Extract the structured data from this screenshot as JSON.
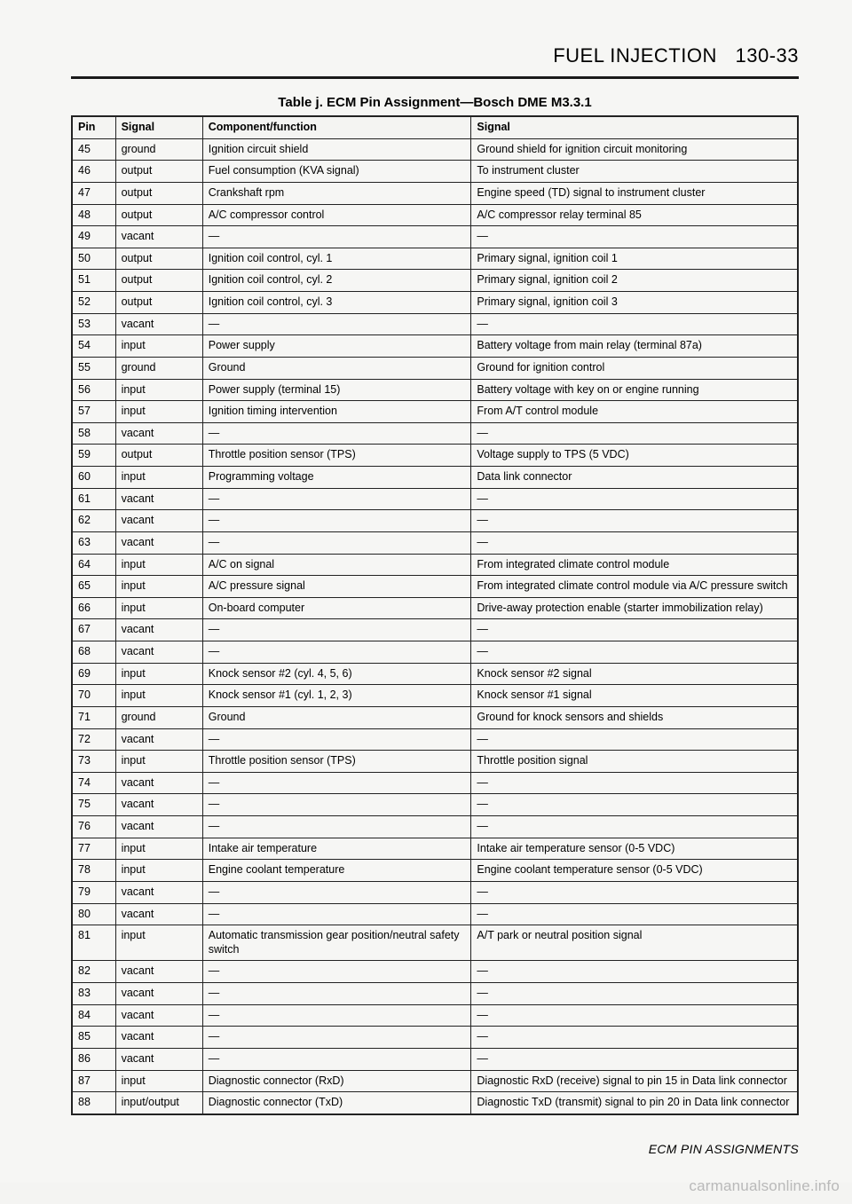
{
  "header": {
    "section": "FUEL INJECTION",
    "page": "130-33"
  },
  "caption": "Table j. ECM Pin Assignment—Bosch DME M3.3.1",
  "columns": [
    "Pin",
    "Signal",
    "Component/function",
    "Signal"
  ],
  "rows": [
    [
      "45",
      "ground",
      "Ignition circuit shield",
      "Ground shield for ignition circuit monitoring"
    ],
    [
      "46",
      "output",
      "Fuel consumption (KVA signal)",
      "To instrument cluster"
    ],
    [
      "47",
      "output",
      "Crankshaft rpm",
      "Engine speed (TD) signal to instrument cluster"
    ],
    [
      "48",
      "output",
      "A/C compressor control",
      "A/C compressor relay terminal 85"
    ],
    [
      "49",
      "vacant",
      "—",
      "—"
    ],
    [
      "50",
      "output",
      "Ignition coil control, cyl. 1",
      "Primary signal, ignition coil 1"
    ],
    [
      "51",
      "output",
      "Ignition coil control, cyl. 2",
      "Primary signal, ignition coil 2"
    ],
    [
      "52",
      "output",
      "Ignition coil control, cyl. 3",
      "Primary signal, ignition coil 3"
    ],
    [
      "53",
      "vacant",
      "—",
      "—"
    ],
    [
      "54",
      "input",
      "Power supply",
      "Battery voltage from main relay (terminal 87a)"
    ],
    [
      "55",
      "ground",
      "Ground",
      "Ground for ignition control"
    ],
    [
      "56",
      "input",
      "Power supply (terminal 15)",
      "Battery voltage with key on or engine running"
    ],
    [
      "57",
      "input",
      "Ignition timing intervention",
      "From A/T control module"
    ],
    [
      "58",
      "vacant",
      "—",
      "—"
    ],
    [
      "59",
      "output",
      "Throttle position sensor (TPS)",
      "Voltage supply to TPS (5 VDC)"
    ],
    [
      "60",
      "input",
      "Programming voltage",
      "Data link connector"
    ],
    [
      "61",
      "vacant",
      "—",
      "—"
    ],
    [
      "62",
      "vacant",
      "—",
      "—"
    ],
    [
      "63",
      "vacant",
      "—",
      "—"
    ],
    [
      "64",
      "input",
      "A/C on signal",
      "From integrated climate control module"
    ],
    [
      "65",
      "input",
      "A/C pressure signal",
      "From integrated climate control module via A/C pressure switch"
    ],
    [
      "66",
      "input",
      "On-board computer",
      "Drive-away protection enable (starter immobilization relay)"
    ],
    [
      "67",
      "vacant",
      "—",
      "—"
    ],
    [
      "68",
      "vacant",
      "—",
      "—"
    ],
    [
      "69",
      "input",
      "Knock sensor #2 (cyl. 4, 5, 6)",
      "Knock sensor #2 signal"
    ],
    [
      "70",
      "input",
      "Knock sensor #1 (cyl. 1, 2, 3)",
      "Knock sensor #1 signal"
    ],
    [
      "71",
      "ground",
      "Ground",
      "Ground for knock sensors and shields"
    ],
    [
      "72",
      "vacant",
      "—",
      "—"
    ],
    [
      "73",
      "input",
      "Throttle position sensor (TPS)",
      "Throttle position signal"
    ],
    [
      "74",
      "vacant",
      "—",
      "—"
    ],
    [
      "75",
      "vacant",
      "—",
      "—"
    ],
    [
      "76",
      "vacant",
      "—",
      "—"
    ],
    [
      "77",
      "input",
      "Intake air temperature",
      "Intake air temperature sensor (0-5 VDC)"
    ],
    [
      "78",
      "input",
      "Engine coolant temperature",
      "Engine coolant temperature sensor (0-5 VDC)"
    ],
    [
      "79",
      "vacant",
      "—",
      "—"
    ],
    [
      "80",
      "vacant",
      "—",
      "—"
    ],
    [
      "81",
      "input",
      "Automatic transmission gear position/neutral safety switch",
      "A/T park or neutral position signal"
    ],
    [
      "82",
      "vacant",
      "—",
      "—"
    ],
    [
      "83",
      "vacant",
      "—",
      "—"
    ],
    [
      "84",
      "vacant",
      "—",
      "—"
    ],
    [
      "85",
      "vacant",
      "—",
      "—"
    ],
    [
      "86",
      "vacant",
      "—",
      "—"
    ],
    [
      "87",
      "input",
      "Diagnostic connector (RxD)",
      "Diagnostic RxD (receive) signal to pin 15 in Data link connector"
    ],
    [
      "88",
      "input/output",
      "Diagnostic connector (TxD)",
      "Diagnostic TxD (transmit) signal to pin 20 in Data link connector"
    ]
  ],
  "footer": "ECM PIN ASSIGNMENTS",
  "watermark": "carmanualsonline.info"
}
